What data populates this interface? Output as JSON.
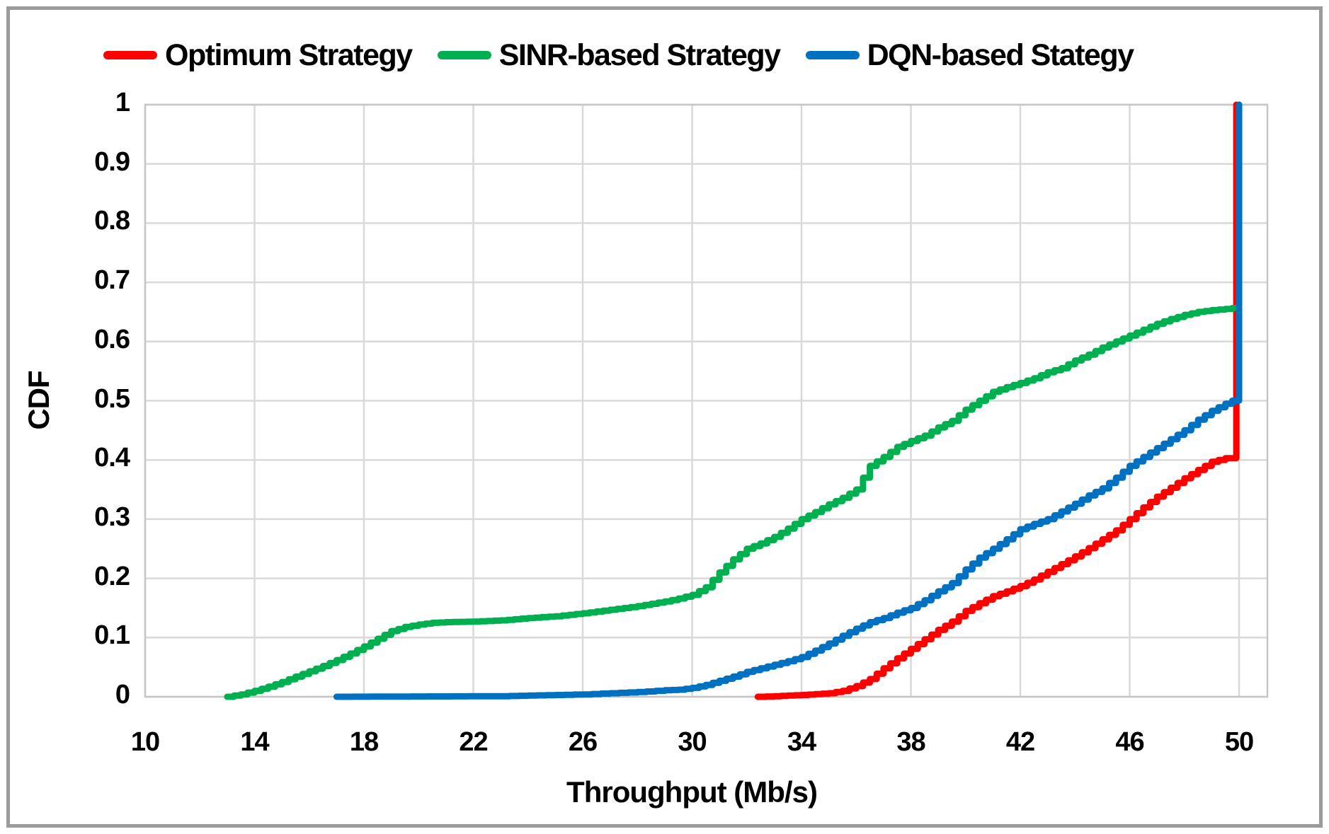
{
  "legend": {
    "items": [
      {
        "name": "optimum",
        "label": "Optimum Strategy",
        "color": "#FF0000"
      },
      {
        "name": "sinr",
        "label": "SINR-based Strategy",
        "color": "#00B050"
      },
      {
        "name": "dqn",
        "label": "DQN-based Stategy",
        "color": "#0070C0"
      }
    ]
  },
  "colors": {
    "gridline": "#D9D9D9",
    "plot_border": "#C6C6C6",
    "frame_border": "#9B9B9B",
    "background": "#FFFFFF",
    "text": "#000000"
  },
  "chart_data": {
    "type": "line",
    "title": "",
    "xlabel": "Throughput (Mb/s)",
    "ylabel": "CDF",
    "xlim": [
      10,
      50
    ],
    "ylim": [
      0,
      1
    ],
    "x_ticks": [
      10,
      14,
      18,
      22,
      26,
      30,
      34,
      38,
      42,
      46,
      50
    ],
    "y_ticks": [
      0,
      0.1,
      0.2,
      0.3,
      0.4,
      0.5,
      0.6,
      0.7,
      0.8,
      0.9,
      1
    ],
    "y_tick_labels": [
      "0",
      "0.1",
      "0.2",
      "0.3",
      "0.4",
      "0.5",
      "0.6",
      "0.7",
      "0.8",
      "0.9",
      "1"
    ],
    "grid": true,
    "legend_position": "top",
    "line_width": 9,
    "series": [
      {
        "name": "Optimum Strategy",
        "color": "#FF0000",
        "points": [
          [
            32.4,
            0
          ],
          [
            33,
            0.001
          ],
          [
            33.5,
            0.002
          ],
          [
            34,
            0.003
          ],
          [
            34.5,
            0.0045
          ],
          [
            35,
            0.006
          ],
          [
            35.5,
            0.01
          ],
          [
            36,
            0.018
          ],
          [
            36.5,
            0.03
          ],
          [
            37,
            0.048
          ],
          [
            37.5,
            0.065
          ],
          [
            38,
            0.081
          ],
          [
            38.5,
            0.097
          ],
          [
            39,
            0.113
          ],
          [
            39.5,
            0.127
          ],
          [
            40,
            0.145
          ],
          [
            40.5,
            0.158
          ],
          [
            41,
            0.17
          ],
          [
            41.5,
            0.178
          ],
          [
            42,
            0.187
          ],
          [
            42.5,
            0.198
          ],
          [
            43,
            0.211
          ],
          [
            43.5,
            0.224
          ],
          [
            44,
            0.237
          ],
          [
            44.5,
            0.251
          ],
          [
            45,
            0.266
          ],
          [
            45.5,
            0.281
          ],
          [
            46,
            0.3
          ],
          [
            46.5,
            0.32
          ],
          [
            47,
            0.338
          ],
          [
            47.5,
            0.353
          ],
          [
            48,
            0.369
          ],
          [
            48.5,
            0.383
          ],
          [
            49,
            0.397
          ],
          [
            49.5,
            0.403
          ],
          [
            49.9,
            0.408
          ],
          [
            49.9,
            1.0
          ]
        ]
      },
      {
        "name": "SINR-based Strategy",
        "color": "#00B050",
        "points": [
          [
            13,
            0
          ],
          [
            13.5,
            0.004
          ],
          [
            14,
            0.01
          ],
          [
            14.5,
            0.017
          ],
          [
            15,
            0.025
          ],
          [
            15.5,
            0.034
          ],
          [
            16,
            0.043
          ],
          [
            16.5,
            0.052
          ],
          [
            17,
            0.062
          ],
          [
            17.5,
            0.073
          ],
          [
            18,
            0.085
          ],
          [
            18.5,
            0.098
          ],
          [
            19,
            0.111
          ],
          [
            19.5,
            0.118
          ],
          [
            20,
            0.122
          ],
          [
            20.5,
            0.125
          ],
          [
            21,
            0.126
          ],
          [
            21.5,
            0.1265
          ],
          [
            22,
            0.127
          ],
          [
            22.5,
            0.128
          ],
          [
            23,
            0.129
          ],
          [
            23.5,
            0.131
          ],
          [
            24,
            0.133
          ],
          [
            24.5,
            0.1345
          ],
          [
            25,
            0.136
          ],
          [
            25.5,
            0.1385
          ],
          [
            26,
            0.141
          ],
          [
            26.5,
            0.144
          ],
          [
            27,
            0.147
          ],
          [
            27.5,
            0.15
          ],
          [
            28,
            0.153
          ],
          [
            28.5,
            0.157
          ],
          [
            29,
            0.161
          ],
          [
            29.5,
            0.166
          ],
          [
            30,
            0.172
          ],
          [
            30.5,
            0.185
          ],
          [
            31,
            0.21
          ],
          [
            31.5,
            0.232
          ],
          [
            32,
            0.25
          ],
          [
            32.5,
            0.259
          ],
          [
            33,
            0.27
          ],
          [
            33.5,
            0.284
          ],
          [
            34,
            0.3
          ],
          [
            34.5,
            0.312
          ],
          [
            35,
            0.325
          ],
          [
            35.5,
            0.336
          ],
          [
            36,
            0.35
          ],
          [
            36.5,
            0.39
          ],
          [
            37,
            0.405
          ],
          [
            37.5,
            0.422
          ],
          [
            38,
            0.432
          ],
          [
            38.5,
            0.441
          ],
          [
            39,
            0.455
          ],
          [
            39.5,
            0.466
          ],
          [
            40,
            0.485
          ],
          [
            40.5,
            0.5
          ],
          [
            41,
            0.515
          ],
          [
            41.5,
            0.523
          ],
          [
            42,
            0.53
          ],
          [
            42.5,
            0.538
          ],
          [
            43,
            0.548
          ],
          [
            43.5,
            0.555
          ],
          [
            44,
            0.568
          ],
          [
            44.5,
            0.578
          ],
          [
            45,
            0.59
          ],
          [
            45.5,
            0.6
          ],
          [
            46,
            0.61
          ],
          [
            46.5,
            0.62
          ],
          [
            47,
            0.63
          ],
          [
            47.5,
            0.638
          ],
          [
            48,
            0.645
          ],
          [
            48.5,
            0.65
          ],
          [
            49,
            0.653
          ],
          [
            49.5,
            0.655
          ],
          [
            50,
            0.658
          ],
          [
            50,
            1.0
          ]
        ]
      },
      {
        "name": "DQN-based Stategy",
        "color": "#0070C0",
        "points": [
          [
            17,
            0
          ],
          [
            20,
            0.0005
          ],
          [
            23,
            0.001
          ],
          [
            24,
            0.002
          ],
          [
            25,
            0.003
          ],
          [
            26,
            0.004
          ],
          [
            27,
            0.006
          ],
          [
            28,
            0.008
          ],
          [
            29,
            0.011
          ],
          [
            29.5,
            0.012
          ],
          [
            30,
            0.015
          ],
          [
            30.5,
            0.02
          ],
          [
            31,
            0.027
          ],
          [
            31.5,
            0.034
          ],
          [
            32,
            0.042
          ],
          [
            32.5,
            0.048
          ],
          [
            33,
            0.054
          ],
          [
            33.5,
            0.06
          ],
          [
            34,
            0.067
          ],
          [
            34.5,
            0.078
          ],
          [
            35,
            0.09
          ],
          [
            35.5,
            0.103
          ],
          [
            36,
            0.115
          ],
          [
            36.5,
            0.126
          ],
          [
            37,
            0.133
          ],
          [
            37.5,
            0.142
          ],
          [
            38,
            0.15
          ],
          [
            38.5,
            0.163
          ],
          [
            39,
            0.178
          ],
          [
            39.5,
            0.192
          ],
          [
            40,
            0.215
          ],
          [
            40.5,
            0.235
          ],
          [
            41,
            0.25
          ],
          [
            41.5,
            0.266
          ],
          [
            42,
            0.283
          ],
          [
            42.5,
            0.292
          ],
          [
            43,
            0.3
          ],
          [
            43.5,
            0.313
          ],
          [
            44,
            0.326
          ],
          [
            44.5,
            0.34
          ],
          [
            45,
            0.352
          ],
          [
            45.5,
            0.37
          ],
          [
            46,
            0.39
          ],
          [
            46.5,
            0.405
          ],
          [
            47,
            0.42
          ],
          [
            47.5,
            0.435
          ],
          [
            48,
            0.45
          ],
          [
            48.5,
            0.468
          ],
          [
            49,
            0.483
          ],
          [
            49.5,
            0.495
          ],
          [
            50,
            0.505
          ],
          [
            50,
            1.0
          ]
        ]
      }
    ]
  }
}
